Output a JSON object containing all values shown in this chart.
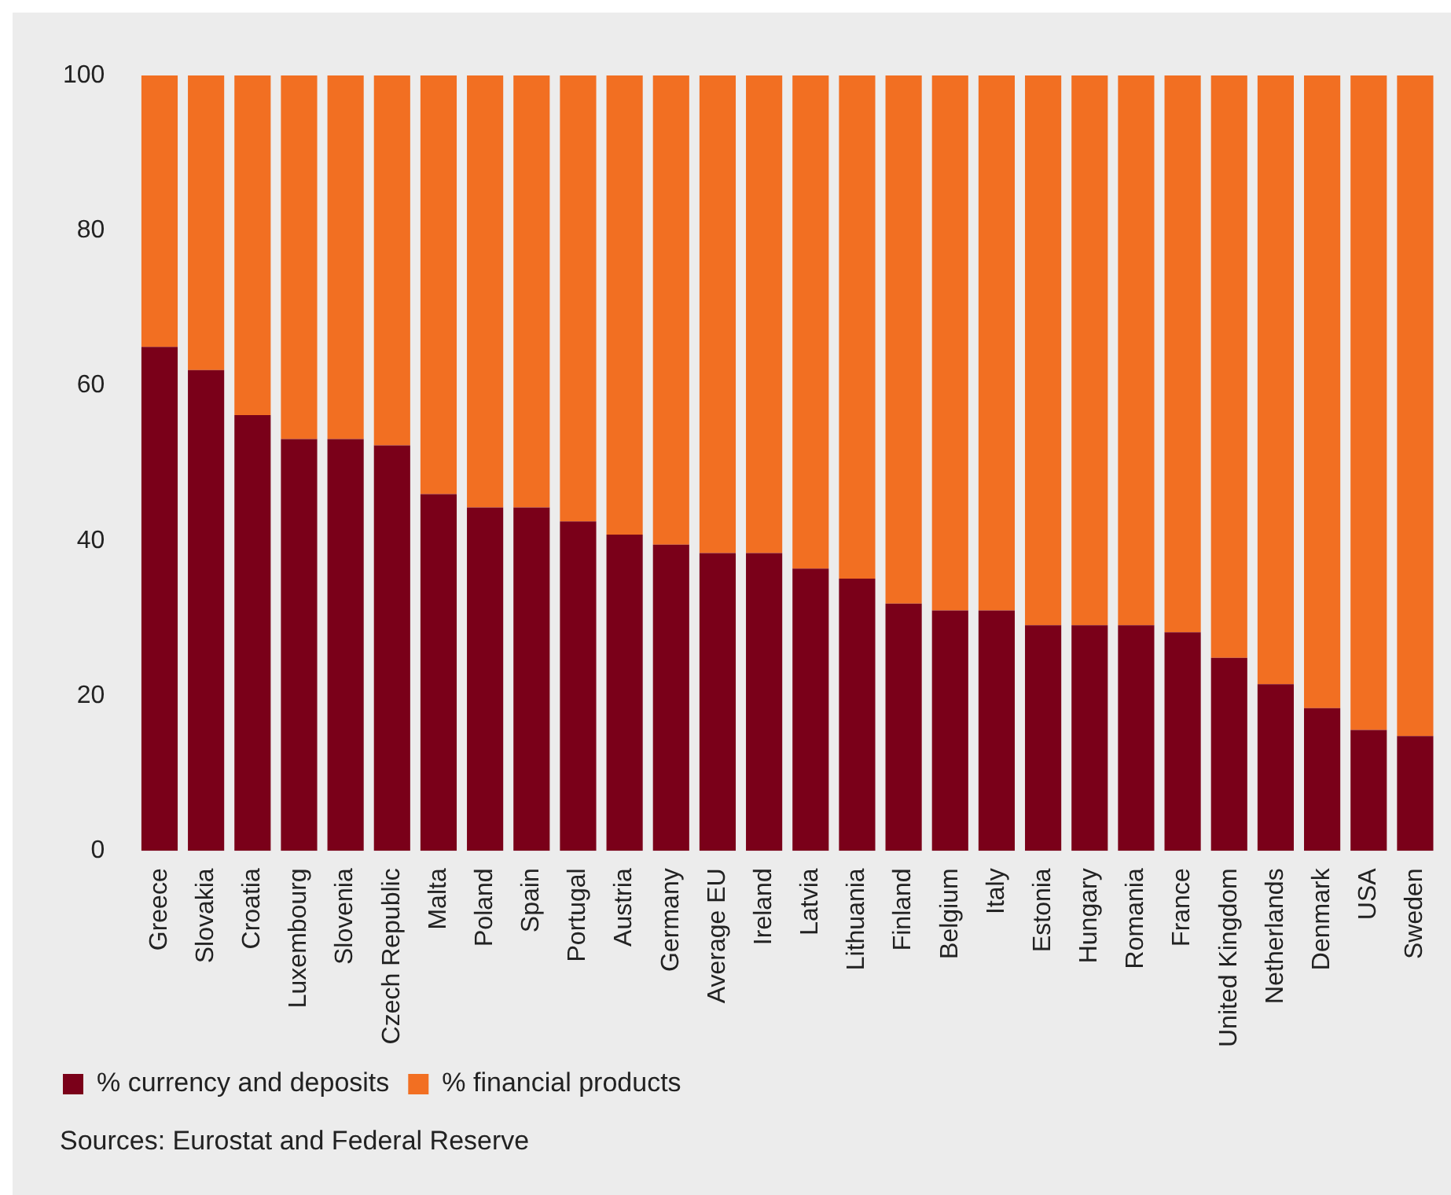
{
  "chart_data": {
    "type": "bar",
    "stacked": true,
    "categories": [
      "Greece",
      "Slovakia",
      "Croatia",
      "Luxembourg",
      "Slovenia",
      "Czech Republic",
      "Malta",
      "Poland",
      "Spain",
      "Portugal",
      "Austria",
      "Germany",
      "Average EU",
      "Ireland",
      "Latvia",
      "Lithuania",
      "Finland",
      "Belgium",
      "Italy",
      "Estonia",
      "Hungary",
      "Romania",
      "France",
      "United Kingdom",
      "Netherlands",
      "Denmark",
      "USA",
      "Sweden"
    ],
    "series": [
      {
        "name": "% currency and deposits",
        "color": "#7a0019",
        "values": [
          65,
          62,
          56.2,
          53.1,
          53.1,
          52.3,
          46,
          44.3,
          44.3,
          42.5,
          40.8,
          39.5,
          38.4,
          38.4,
          36.4,
          35.1,
          31.9,
          31,
          31,
          29.1,
          29.1,
          29.1,
          28.2,
          24.9,
          21.5,
          18.4,
          15.6,
          14.8
        ]
      },
      {
        "name": "% financial products",
        "color": "#f26f22",
        "values": [
          35,
          38,
          43.8,
          46.9,
          46.9,
          47.7,
          54,
          55.7,
          55.7,
          57.5,
          59.2,
          60.5,
          61.6,
          61.6,
          63.6,
          64.9,
          68.1,
          69,
          69,
          70.9,
          70.9,
          70.9,
          71.8,
          75.1,
          78.5,
          81.6,
          84.4,
          85.2
        ]
      }
    ],
    "ylim": [
      0,
      100
    ],
    "yticks": [
      0,
      20,
      40,
      60,
      80,
      100
    ],
    "grid": false,
    "legend": "bottom left",
    "annotations": [
      "Sources: Eurostat and Federal Reserve"
    ]
  }
}
